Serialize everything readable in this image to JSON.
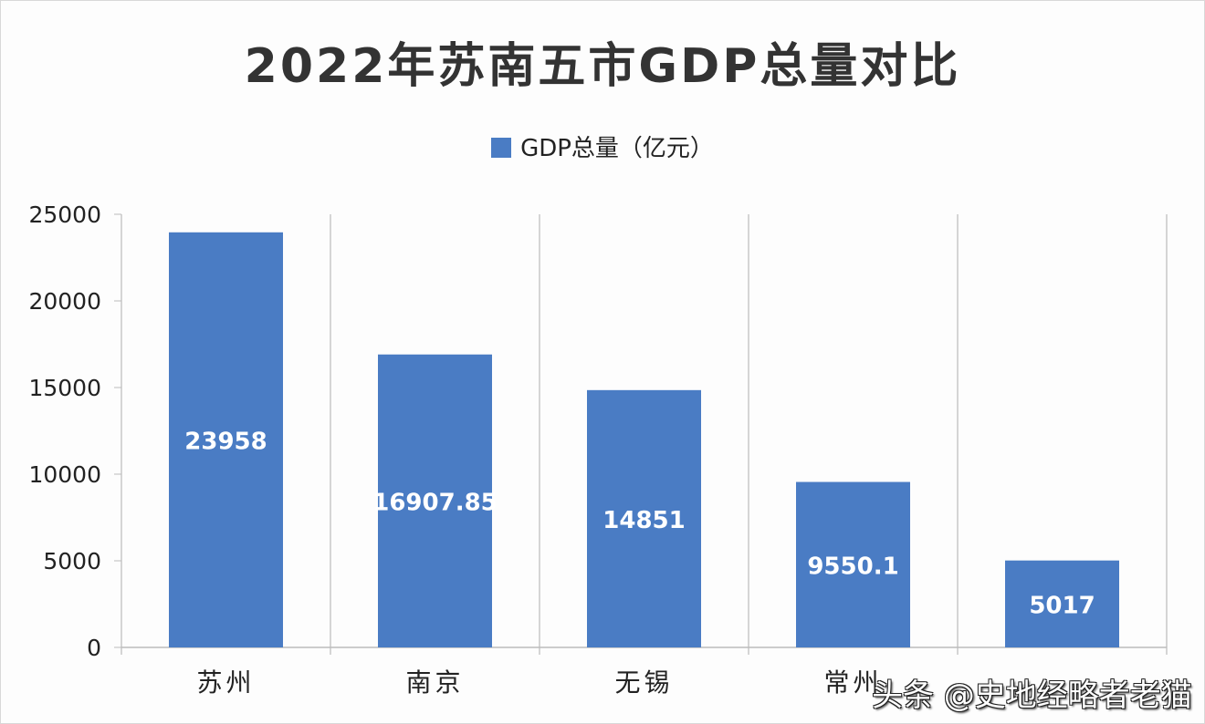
{
  "chart_data": {
    "type": "bar",
    "title": "2022年苏南五市GDP总量对比",
    "legend": {
      "label": "GDP总量（亿元）",
      "placement": "top"
    },
    "categories": [
      "苏州",
      "南京",
      "无锡",
      "常州",
      ""
    ],
    "series": [
      {
        "name": "GDP总量（亿元）",
        "values": [
          23958,
          16907.85,
          14851,
          9550.1,
          5017
        ],
        "labels": [
          "23958",
          "16907.85",
          "14851",
          "9550.1",
          "5017"
        ],
        "color": "#4a7cc4"
      }
    ],
    "yticks": [
      "0",
      "5000",
      "10000",
      "15000",
      "20000",
      "25000"
    ],
    "ylim": [
      0,
      25000
    ],
    "grid": "vertical category separators"
  },
  "watermark": "头条 @史地经略者老猫"
}
